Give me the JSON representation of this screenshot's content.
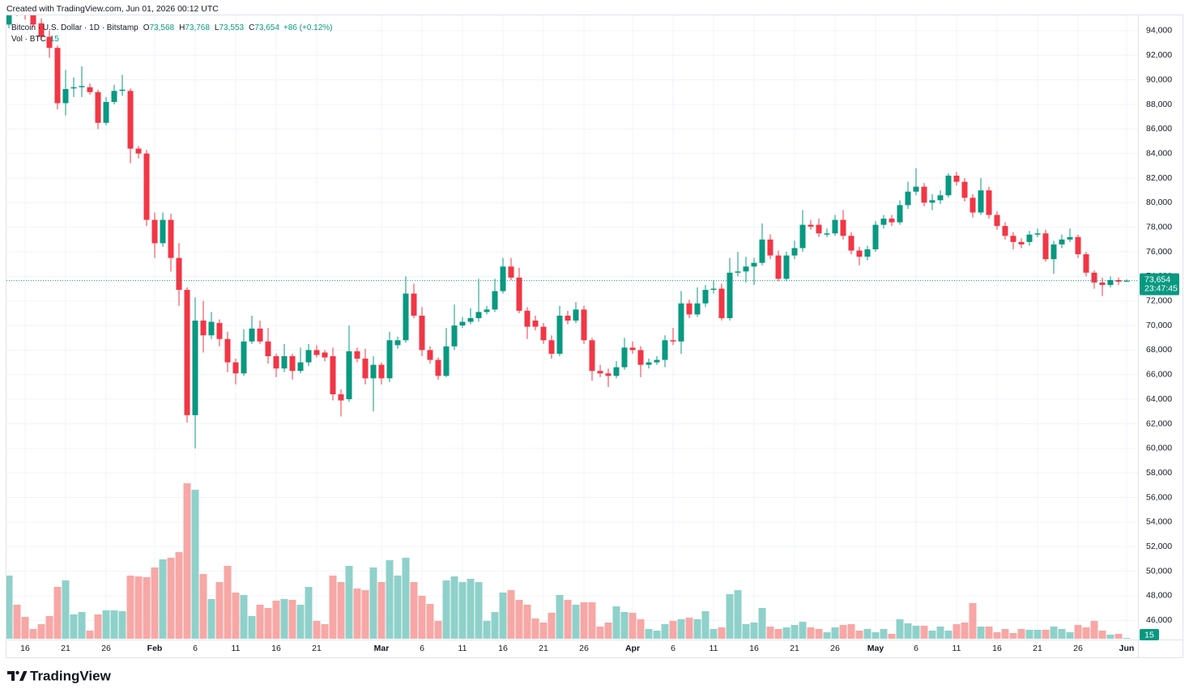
{
  "chart_data": {
    "type": "candlestick",
    "created": "Created with TradingView.com, Jun 01, 2026 00:12 UTC",
    "title": "Bitcoin · U.S. Dollar · 1D · Bitstamp",
    "ohlc_legend": [
      {
        "key": "O",
        "text": "73,568"
      },
      {
        "key": "H",
        "text": "73,768"
      },
      {
        "key": "L",
        "text": "73,553"
      },
      {
        "key": "C",
        "text": "73,654"
      }
    ],
    "change": "+86 (+0.12%)",
    "volume_title": "Vol · BTC",
    "last_price_label": "73,654",
    "countdown": "23:47:45",
    "brand": "TradingView",
    "up_color": "#089981",
    "down_color": "#f23645",
    "volume_up_color": "#8fd1ca",
    "volume_down_color": "#f7a7a5",
    "grid": true,
    "xlim": [
      -1.1,
      138.9
    ],
    "xticks": [
      {
        "value": 2,
        "label": "16"
      },
      {
        "value": 7,
        "label": "21"
      },
      {
        "value": 12,
        "label": "26"
      },
      {
        "value": 18,
        "label": "Feb"
      },
      {
        "value": 23,
        "label": "6"
      },
      {
        "value": 28,
        "label": "11"
      },
      {
        "value": 33,
        "label": "16"
      },
      {
        "value": 38,
        "label": "21"
      },
      {
        "value": 46,
        "label": "Mar"
      },
      {
        "value": 51,
        "label": "6"
      },
      {
        "value": 56,
        "label": "11"
      },
      {
        "value": 61,
        "label": "16"
      },
      {
        "value": 66,
        "label": "21"
      },
      {
        "value": 71,
        "label": "26"
      },
      {
        "value": 77,
        "label": "Apr"
      },
      {
        "value": 82,
        "label": "6"
      },
      {
        "value": 87,
        "label": "11"
      },
      {
        "value": 92,
        "label": "16"
      },
      {
        "value": 97,
        "label": "21"
      },
      {
        "value": 102,
        "label": "26"
      },
      {
        "value": 107,
        "label": "May"
      },
      {
        "value": 112,
        "label": "6"
      },
      {
        "value": 117,
        "label": "11"
      },
      {
        "value": 122,
        "label": "16"
      },
      {
        "value": 127,
        "label": "21"
      },
      {
        "value": 132,
        "label": "26"
      },
      {
        "value": 138,
        "label": "Jun"
      }
    ],
    "ylim": [
      44500,
      96500
    ],
    "yticks": [
      {
        "value": 46000,
        "label": "46,000"
      },
      {
        "value": 48000,
        "label": "48,000"
      },
      {
        "value": 50000,
        "label": "50,000"
      },
      {
        "value": 52000,
        "label": "52,000"
      },
      {
        "value": 54000,
        "label": "54,000"
      },
      {
        "value": 56000,
        "label": "56,000"
      },
      {
        "value": 58000,
        "label": "58,000"
      },
      {
        "value": 60000,
        "label": "60,000"
      },
      {
        "value": 62000,
        "label": "62,000"
      },
      {
        "value": 64000,
        "label": "64,000"
      },
      {
        "value": 66000,
        "label": "66,000"
      },
      {
        "value": 68000,
        "label": "68,000"
      },
      {
        "value": 70000,
        "label": "70,000"
      },
      {
        "value": 72000,
        "label": "72,000"
      },
      {
        "value": 74000,
        "label": "74,000"
      },
      {
        "value": 76000,
        "label": "76,000"
      },
      {
        "value": 78000,
        "label": "78,000"
      },
      {
        "value": 80000,
        "label": "80,000"
      },
      {
        "value": 82000,
        "label": "82,000"
      },
      {
        "value": 84000,
        "label": "84,000"
      },
      {
        "value": 86000,
        "label": "86,000"
      },
      {
        "value": 88000,
        "label": "88,000"
      },
      {
        "value": 90000,
        "label": "90,000"
      },
      {
        "value": 92000,
        "label": "92,000"
      },
      {
        "value": 94000,
        "label": "94,000"
      }
    ],
    "open": [
      94500,
      97000,
      95500,
      95300,
      94600,
      93500,
      92600,
      88100,
      89300,
      89400,
      89400,
      89000,
      86500,
      88200,
      89100,
      89100,
      84400,
      84000,
      78600,
      76700,
      78600,
      75500,
      72900,
      62700,
      70400,
      69200,
      70200,
      68900,
      67000,
      66100,
      68700,
      69750,
      68700,
      67500,
      66500,
      67500,
      66300,
      67000,
      68000,
      67800,
      67500,
      64400,
      64000,
      67900,
      67300,
      65700,
      66800,
      65700,
      68400,
      68800,
      72600,
      70800,
      68000,
      67200,
      65900,
      68300,
      70000,
      70300,
      70600,
      71100,
      71300,
      72800,
      74800,
      73900,
      71200,
      70400,
      69900,
      68800,
      67700,
      70800,
      70400,
      71300,
      68800,
      66300,
      66100,
      65900,
      66600,
      68200,
      68000,
      66800,
      67000,
      67200,
      68800,
      68700,
      71800,
      70900,
      71800,
      72900,
      73000,
      70600,
      74300,
      74400,
      74800,
      75100,
      77000,
      75700,
      73800,
      75700,
      76300,
      78200,
      78200,
      77400,
      77500,
      78600,
      77300,
      76100,
      75600,
      76200,
      78200,
      78700,
      78400,
      79800,
      80900,
      81300,
      80000,
      80200,
      80600,
      82200,
      81700,
      80400,
      79200,
      81000,
      79000,
      78100,
      77300,
      76800,
      76800,
      77400,
      77500,
      75400,
      76600,
      77000,
      77200,
      75800,
      74300,
      73500,
      73300,
      73700,
      73568
    ],
    "high": [
      97800,
      97400,
      96200,
      95700,
      95000,
      94000,
      92800,
      90800,
      90200,
      91100,
      89700,
      89200,
      88600,
      89600,
      90400,
      89300,
      84600,
      84300,
      79200,
      79200,
      79100,
      76700,
      73100,
      72300,
      72000,
      71100,
      70500,
      69500,
      67300,
      69700,
      70800,
      70400,
      69800,
      67700,
      68500,
      67700,
      68200,
      68500,
      68400,
      68000,
      68200,
      64800,
      70000,
      68200,
      68100,
      67500,
      67000,
      69500,
      69100,
      74000,
      73400,
      71500,
      68300,
      67400,
      69800,
      71700,
      70700,
      71400,
      73800,
      71600,
      73800,
      75500,
      75500,
      74700,
      71500,
      70800,
      70200,
      69200,
      71600,
      71200,
      71900,
      71600,
      69000,
      66800,
      66500,
      67100,
      69000,
      68700,
      68300,
      67300,
      67500,
      69200,
      69800,
      72800,
      72100,
      73100,
      73300,
      73700,
      73400,
      75500,
      76000,
      75600,
      75500,
      78300,
      77400,
      76100,
      76000,
      76900,
      79400,
      78600,
      78700,
      77900,
      79000,
      79400,
      77600,
      76400,
      76500,
      78500,
      79000,
      79000,
      80200,
      81700,
      82800,
      81600,
      80700,
      81000,
      82400,
      82500,
      82000,
      80700,
      82000,
      81300,
      79300,
      78400,
      77600,
      77100,
      77700,
      77900,
      77800,
      76900,
      77400,
      77900,
      77400,
      76000,
      74500,
      73900,
      74000,
      73900,
      73768
    ],
    "low": [
      94200,
      95200,
      94900,
      94300,
      93300,
      91800,
      87600,
      87100,
      88600,
      88600,
      88800,
      86000,
      86300,
      88000,
      88700,
      83200,
      83600,
      78100,
      75500,
      76400,
      74400,
      71600,
      62100,
      60000,
      67800,
      68900,
      68300,
      66200,
      65200,
      65900,
      68500,
      68500,
      66900,
      65800,
      66200,
      65600,
      66100,
      66700,
      67400,
      67100,
      63900,
      62600,
      63800,
      67000,
      65200,
      63000,
      65200,
      65400,
      68100,
      68600,
      70600,
      67500,
      66900,
      65600,
      65800,
      68000,
      69800,
      70100,
      70300,
      70900,
      71100,
      72600,
      73700,
      71000,
      68900,
      69600,
      68500,
      67300,
      67500,
      70100,
      70200,
      68500,
      65500,
      65800,
      65000,
      65700,
      66400,
      67700,
      65800,
      66500,
      66800,
      66600,
      68400,
      67700,
      70600,
      70700,
      71500,
      72600,
      70400,
      70400,
      74000,
      73500,
      73300,
      74900,
      75400,
      73600,
      73600,
      75400,
      76000,
      77800,
      77200,
      77200,
      77300,
      77000,
      75800,
      74900,
      75300,
      76000,
      77900,
      78100,
      78200,
      79500,
      80600,
      79700,
      79400,
      79900,
      80400,
      81400,
      80100,
      78800,
      79000,
      78700,
      77800,
      77000,
      76200,
      76300,
      76500,
      77200,
      75200,
      74200,
      76300,
      76800,
      75500,
      74000,
      73000,
      72400,
      73100,
      73300,
      73553
    ],
    "close": [
      97000,
      95500,
      95350,
      94500,
      93500,
      92600,
      88100,
      89250,
      89400,
      89500,
      89000,
      86500,
      88200,
      89100,
      89200,
      84400,
      84000,
      78600,
      76700,
      78600,
      75500,
      72900,
      62700,
      70400,
      69200,
      70300,
      68900,
      67000,
      66100,
      68700,
      69750,
      68700,
      67500,
      66500,
      67500,
      66300,
      67000,
      68000,
      67600,
      67400,
      64400,
      63900,
      67900,
      67300,
      65700,
      66800,
      65700,
      68800,
      68800,
      72600,
      70800,
      68000,
      67200,
      65900,
      68300,
      70000,
      70300,
      70600,
      71100,
      71300,
      72800,
      74800,
      73900,
      71200,
      69900,
      69900,
      68800,
      67700,
      70800,
      70400,
      71300,
      68800,
      66300,
      66100,
      65900,
      66600,
      68200,
      68000,
      66800,
      67000,
      67200,
      68800,
      68700,
      71800,
      70900,
      71800,
      72900,
      73000,
      70600,
      74300,
      74400,
      74800,
      75100,
      77000,
      75700,
      73800,
      75700,
      76300,
      78200,
      78050,
      77500,
      77500,
      78600,
      77300,
      76100,
      75600,
      76200,
      78200,
      78700,
      78400,
      79800,
      80900,
      81300,
      80000,
      80200,
      80600,
      82200,
      81700,
      80400,
      79200,
      81000,
      79000,
      78100,
      77300,
      76800,
      76600,
      77400,
      77500,
      75400,
      76600,
      77000,
      77200,
      75800,
      74300,
      73500,
      73300,
      73700,
      73568,
      73654
    ],
    "volume": [
      1170,
      630,
      405,
      180,
      270,
      420,
      960,
      1080,
      450,
      495,
      150,
      450,
      525,
      525,
      510,
      1170,
      1155,
      1140,
      1320,
      1470,
      1500,
      1605,
      2880,
      2760,
      1200,
      735,
      1050,
      1350,
      855,
      810,
      420,
      630,
      570,
      705,
      735,
      720,
      630,
      960,
      330,
      270,
      1170,
      1050,
      1350,
      930,
      900,
      1320,
      1050,
      1455,
      1170,
      1500,
      1050,
      795,
      645,
      330,
      1080,
      1155,
      1050,
      1110,
      1050,
      330,
      495,
      855,
      900,
      720,
      630,
      375,
      300,
      480,
      810,
      720,
      630,
      675,
      675,
      225,
      300,
      600,
      495,
      480,
      360,
      180,
      150,
      270,
      330,
      360,
      390,
      360,
      510,
      180,
      210,
      825,
      900,
      270,
      300,
      570,
      225,
      180,
      210,
      255,
      315,
      210,
      180,
      120,
      210,
      255,
      270,
      150,
      180,
      120,
      180,
      90,
      360,
      285,
      240,
      240,
      150,
      225,
      150,
      270,
      300,
      660,
      225,
      225,
      120,
      180,
      105,
      180,
      165,
      165,
      165,
      225,
      180,
      120,
      255,
      210,
      330,
      150,
      75,
      90,
      15
    ]
  }
}
